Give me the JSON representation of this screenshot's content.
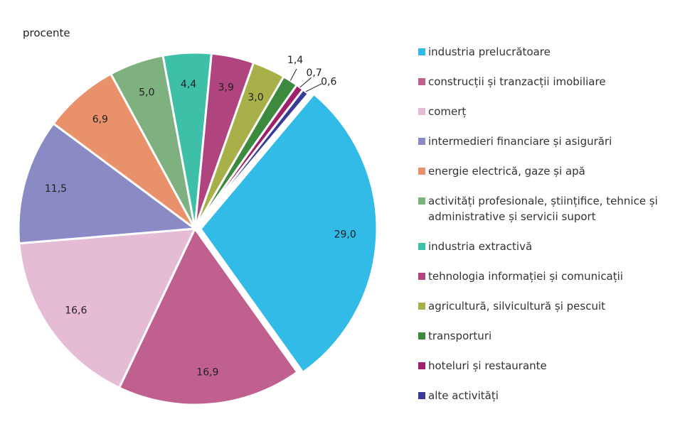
{
  "chart_data": {
    "type": "pie",
    "subtitle": "procente",
    "categories": [
      "industria prelucrătoare",
      "construcții și tranzacții imobiliare",
      "comerț",
      "intermedieri financiare și asigurări",
      "energie electrică, gaze și apă",
      "activități profesionale, științifice, tehnice și administrative și servicii suport",
      "industria extractivă",
      "tehnologia informației și comunicații",
      "agricultură, silvicultură și pescuit",
      "transporturi",
      "hoteluri și restaurante",
      "alte activități"
    ],
    "values": [
      29.0,
      16.9,
      16.6,
      11.5,
      6.9,
      5.0,
      4.4,
      3.9,
      3.0,
      1.4,
      0.7,
      0.6
    ],
    "value_labels": [
      "29,0",
      "16,9",
      "16,6",
      "11,5",
      "6,9",
      "5,0",
      "4,4",
      "3,9",
      "3,0",
      "1,4",
      "0,7",
      "0,6"
    ],
    "colors": [
      "#33bbe8",
      "#c0608f",
      "#e6bcd4",
      "#8a8ac4",
      "#e8916a",
      "#7fb07f",
      "#3dbfa8",
      "#b0447e",
      "#a8b04a",
      "#3c8a3e",
      "#a0206a",
      "#3a3a9a"
    ]
  }
}
